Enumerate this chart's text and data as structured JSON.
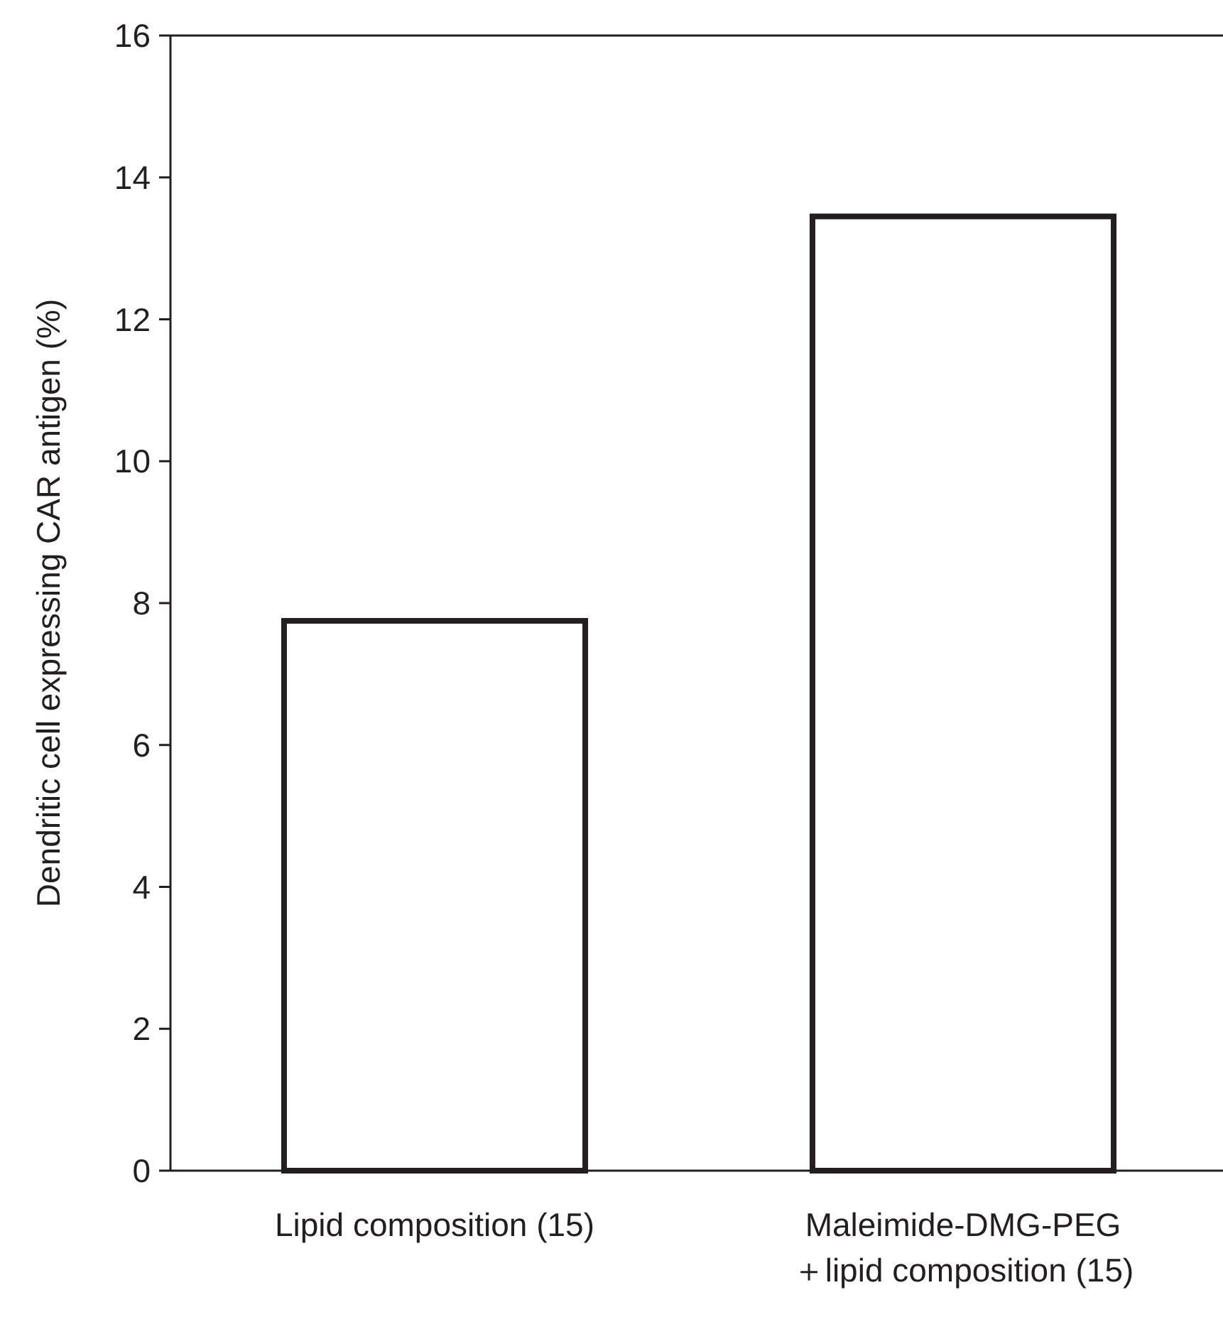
{
  "chart_data": {
    "type": "bar",
    "ylabel": "Dendritic cell expressing CAR antigen (%)",
    "categories": [
      "Lipid composition (15)",
      "Maleimide-DMG-PEG\n＋lipid composition (15)"
    ],
    "values": [
      7.75,
      13.45
    ],
    "color": "#231f20",
    "ylim": [
      0,
      16
    ],
    "yticks": [
      0,
      2,
      4,
      6,
      8,
      10,
      12,
      14,
      16
    ],
    "grid": false
  }
}
